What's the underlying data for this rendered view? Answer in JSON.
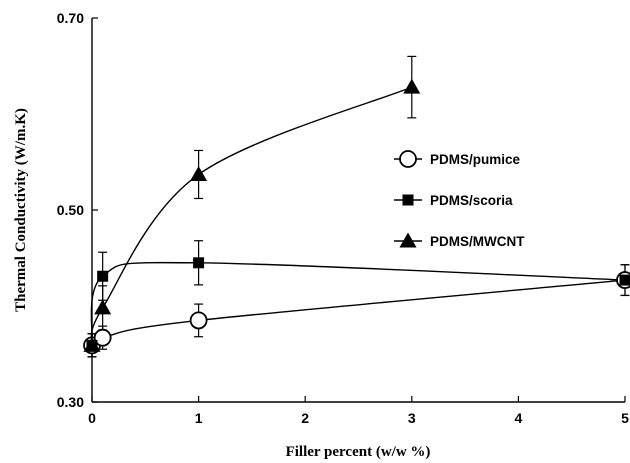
{
  "chart_data": {
    "type": "line",
    "xlabel": "Filler percent (w/w %)",
    "ylabel": "Thermal Conductivity (W/m.K)",
    "xlim": [
      0,
      5
    ],
    "ylim": [
      0.3,
      0.7
    ],
    "xticks": [
      0,
      1,
      2,
      3,
      4,
      5
    ],
    "xtick_labels": [
      "0",
      "1",
      "2",
      "3",
      "4",
      "5"
    ],
    "yticks": [
      0.3,
      0.5,
      0.7
    ],
    "ytick_labels": [
      "0.30",
      "0.50",
      "0.70"
    ],
    "grid": false,
    "legend_position": "right",
    "series": [
      {
        "name": "PDMS/pumice",
        "marker": "open-circle",
        "points": [
          {
            "x": 0,
            "y": 0.359,
            "err": 0.012
          },
          {
            "x": 0.1,
            "y": 0.367,
            "err": 0.012
          },
          {
            "x": 1,
            "y": 0.385,
            "err": 0.017
          },
          {
            "x": 5,
            "y": 0.427,
            "err": 0.016
          }
        ]
      },
      {
        "name": "PDMS/scoria",
        "marker": "filled-square",
        "points": [
          {
            "x": 0,
            "y": 0.359,
            "err": 0.012
          },
          {
            "x": 0.1,
            "y": 0.431,
            "err": 0.025
          },
          {
            "x": 1,
            "y": 0.445,
            "err": 0.023
          },
          {
            "x": 5,
            "y": 0.427,
            "err": 0.016
          }
        ]
      },
      {
        "name": "PDMS/MWCNT",
        "marker": "filled-triangle",
        "points": [
          {
            "x": 0,
            "y": 0.359,
            "err": 0.012
          },
          {
            "x": 0.1,
            "y": 0.398,
            "err": 0.023
          },
          {
            "x": 1,
            "y": 0.537,
            "err": 0.025
          },
          {
            "x": 3,
            "y": 0.628,
            "err": 0.032
          }
        ]
      }
    ]
  }
}
